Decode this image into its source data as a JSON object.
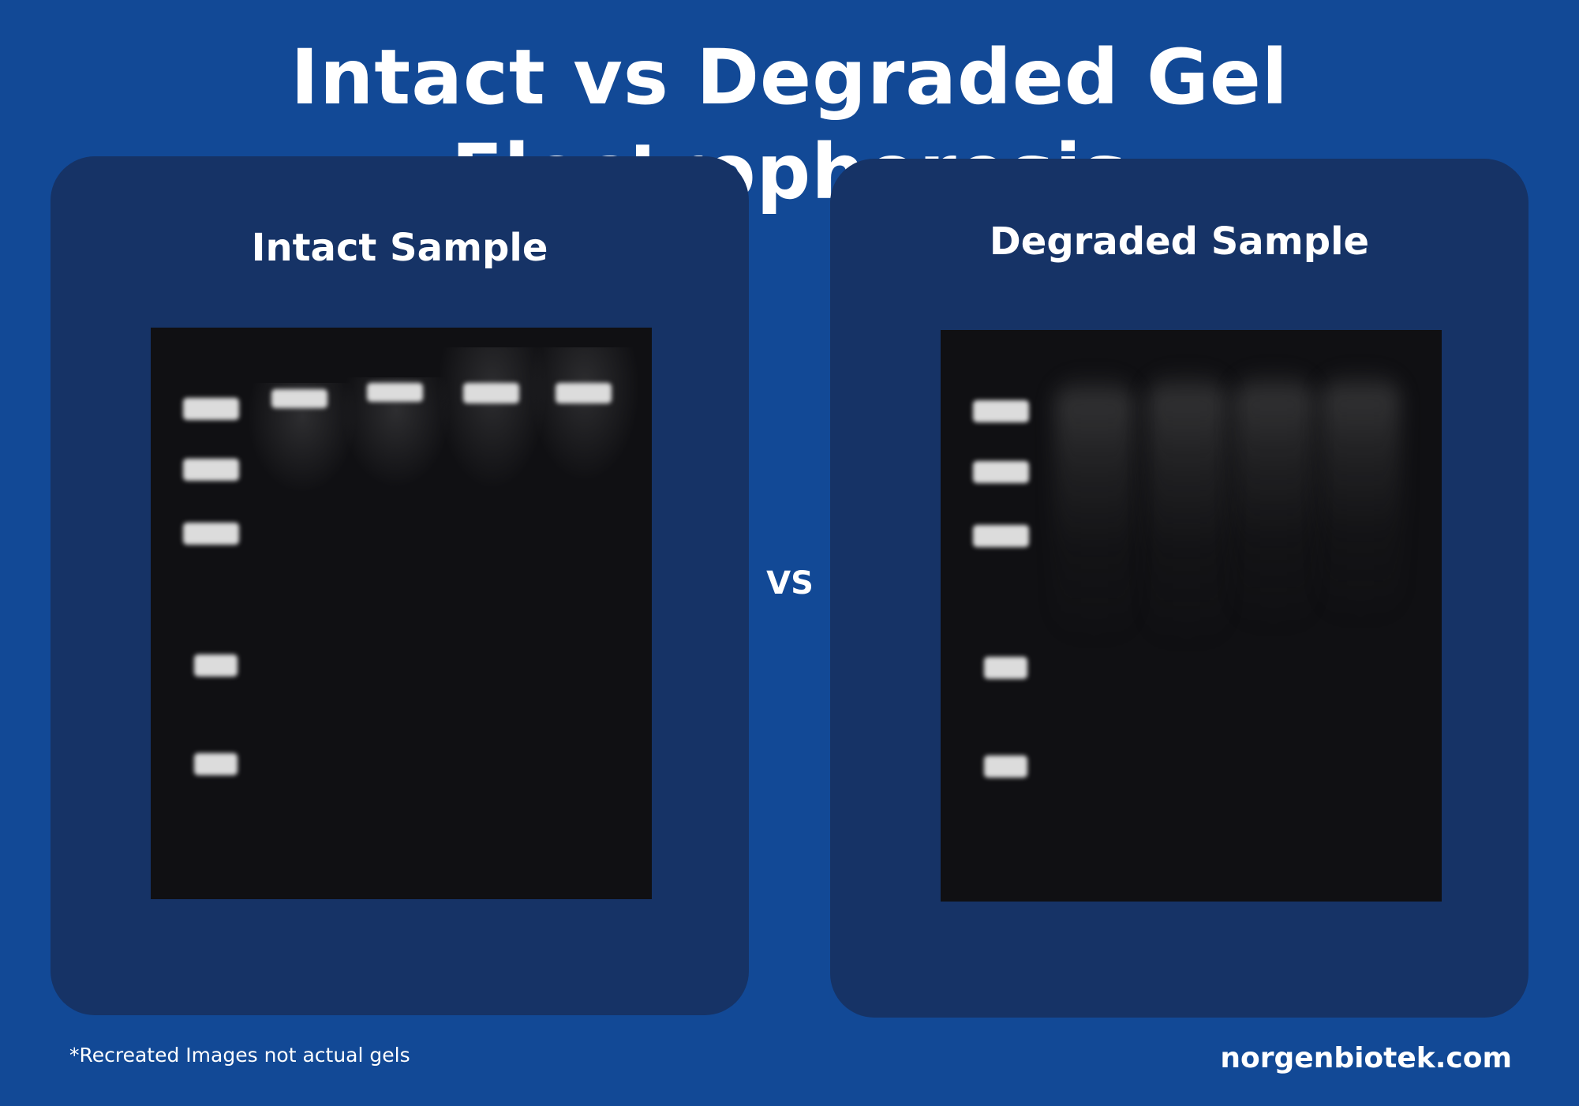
{
  "title": "Intact vs Degraded Gel Electrophoresis",
  "panels": {
    "intact": {
      "title": "Intact Sample"
    },
    "degraded": {
      "title": "Degraded Sample"
    }
  },
  "separator": "VS",
  "footnote": "*Recreated Images not actual gels",
  "website": "norgenbiotek.com",
  "colors": {
    "background": "#124996",
    "panel": "#163366",
    "gel": "#101013",
    "band": "#dcdcdc",
    "text": "#ffffff"
  }
}
